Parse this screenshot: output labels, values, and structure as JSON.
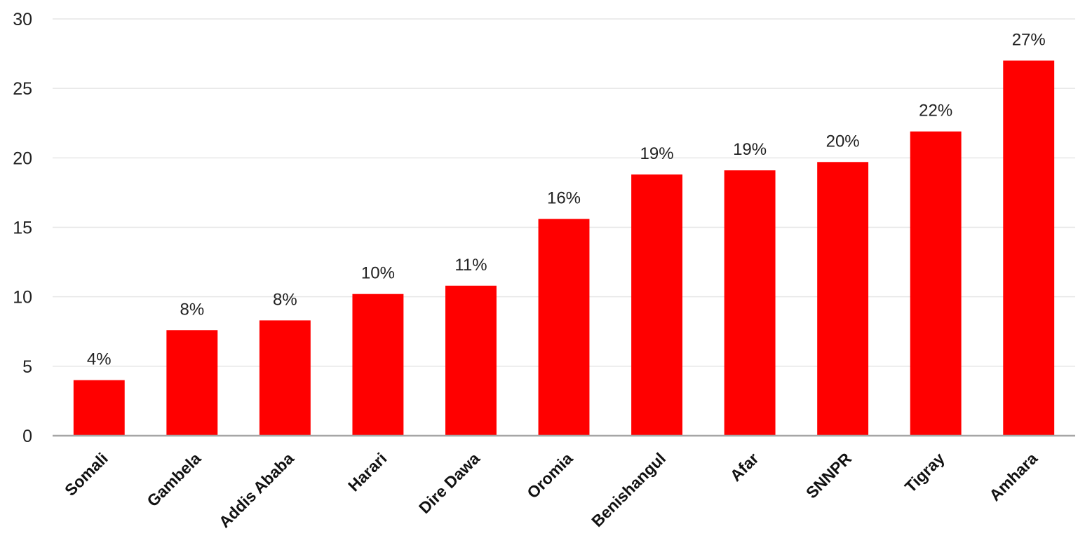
{
  "chart_data": {
    "type": "bar",
    "title": "",
    "xlabel": "",
    "ylabel": "",
    "categories": [
      "Somali",
      "Gambela",
      "Addis Ababa",
      "Harari",
      "Dire Dawa",
      "Oromia",
      "Benishangul",
      "Afar",
      "SNNPR",
      "Tigray",
      "Amhara"
    ],
    "values": [
      4.0,
      7.6,
      8.3,
      10.2,
      10.8,
      15.6,
      18.8,
      19.1,
      19.7,
      21.9,
      27.0
    ],
    "data_labels": [
      "4%",
      "8%",
      "8%",
      "10%",
      "11%",
      "16%",
      "19%",
      "19%",
      "20%",
      "22%",
      "27%"
    ],
    "ylim": [
      0,
      30
    ],
    "yticks": [
      0,
      5,
      10,
      15,
      20,
      25,
      30
    ],
    "grid": true,
    "legend": "none",
    "bar_color": "#ff0000",
    "grid_color": "#e6e6e6",
    "axis_color": "#a6a6a6"
  }
}
